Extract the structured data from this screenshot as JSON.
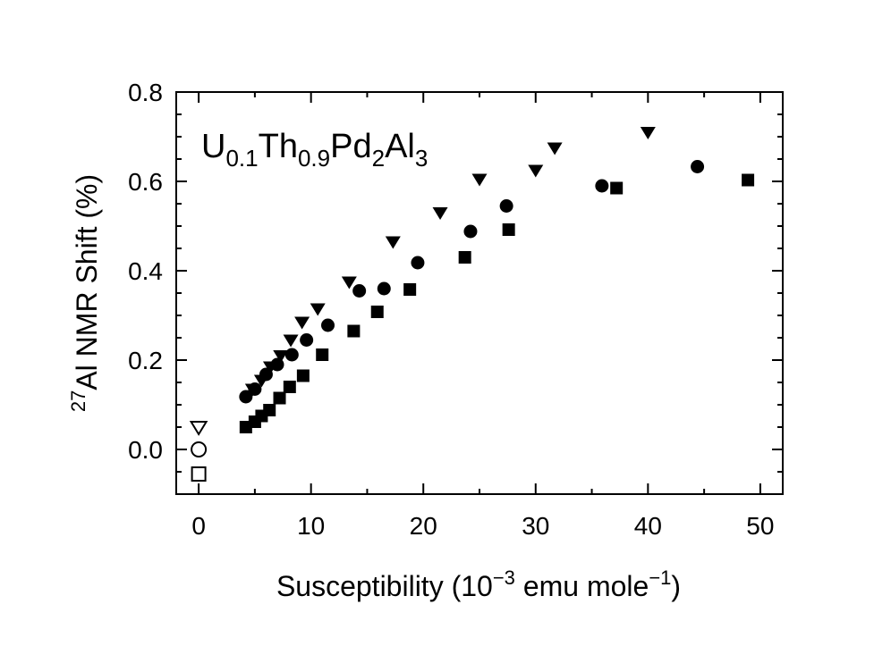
{
  "chart_data": {
    "type": "scatter",
    "title": "",
    "annotation": {
      "parts": [
        {
          "text": "U",
          "style": "normal"
        },
        {
          "text": "0.1",
          "style": "sub"
        },
        {
          "text": "Th",
          "style": "normal"
        },
        {
          "text": "0.9",
          "style": "sub"
        },
        {
          "text": "Pd",
          "style": "normal"
        },
        {
          "text": "2",
          "style": "sub"
        },
        {
          "text": "Al",
          "style": "normal"
        },
        {
          "text": "3",
          "style": "sub"
        }
      ]
    },
    "xlabel": {
      "parts": [
        {
          "text": "Susceptibility  (10",
          "style": "normal"
        },
        {
          "text": "−3",
          "style": "sup"
        },
        {
          "text": " emu mole",
          "style": "normal"
        },
        {
          "text": "−1",
          "style": "sup"
        },
        {
          "text": ")",
          "style": "normal"
        }
      ]
    },
    "ylabel": {
      "parts": [
        {
          "text": "27",
          "style": "sup"
        },
        {
          "text": "Al NMR Shift  (%)",
          "style": "normal"
        }
      ]
    },
    "xlim": [
      -2,
      52
    ],
    "ylim": [
      -0.1,
      0.8
    ],
    "xticks": [
      0,
      10,
      20,
      30,
      40,
      50
    ],
    "xtick_labels": [
      "0",
      "10",
      "20",
      "30",
      "40",
      "50"
    ],
    "xminor_step": 5,
    "yticks": [
      0.0,
      0.2,
      0.4,
      0.6,
      0.8
    ],
    "ytick_labels": [
      "0.0",
      "0.2",
      "0.4",
      "0.6",
      "0.8"
    ],
    "yminor_step": 0.05,
    "grid": false,
    "legend": false,
    "series": [
      {
        "name": "triangles",
        "marker": "triangle-down",
        "fill": "#000000",
        "x": [
          4.8,
          5.6,
          6.4,
          7.3,
          8.2,
          9.2,
          10.6,
          13.4,
          17.3,
          21.5,
          25.0,
          30.0,
          31.7,
          40.0
        ],
        "y": [
          0.135,
          0.155,
          0.185,
          0.21,
          0.245,
          0.285,
          0.315,
          0.375,
          0.465,
          0.53,
          0.605,
          0.625,
          0.675,
          0.71
        ]
      },
      {
        "name": "circles",
        "marker": "circle",
        "fill": "#000000",
        "x": [
          4.2,
          5.0,
          6.0,
          7.0,
          8.3,
          9.6,
          11.5,
          14.3,
          16.5,
          19.5,
          24.2,
          27.4,
          35.9,
          44.4
        ],
        "y": [
          0.118,
          0.135,
          0.168,
          0.19,
          0.212,
          0.245,
          0.278,
          0.355,
          0.36,
          0.418,
          0.488,
          0.545,
          0.59,
          0.633
        ]
      },
      {
        "name": "squares",
        "marker": "square",
        "fill": "#000000",
        "x": [
          4.2,
          5.0,
          5.6,
          6.3,
          7.2,
          8.1,
          9.3,
          11.0,
          13.8,
          15.9,
          18.8,
          23.7,
          27.6,
          37.2,
          48.9
        ],
        "y": [
          0.05,
          0.062,
          0.075,
          0.088,
          0.115,
          0.14,
          0.165,
          0.212,
          0.265,
          0.308,
          0.358,
          0.43,
          0.492,
          0.585,
          0.603
        ]
      },
      {
        "name": "open-triangle",
        "marker": "triangle-down",
        "fill": "none",
        "x": [
          0
        ],
        "y": [
          0.05
        ]
      },
      {
        "name": "open-circle",
        "marker": "circle",
        "fill": "none",
        "x": [
          0
        ],
        "y": [
          0.0
        ]
      },
      {
        "name": "open-square",
        "marker": "square",
        "fill": "none",
        "x": [
          0
        ],
        "y": [
          -0.055
        ]
      }
    ]
  }
}
